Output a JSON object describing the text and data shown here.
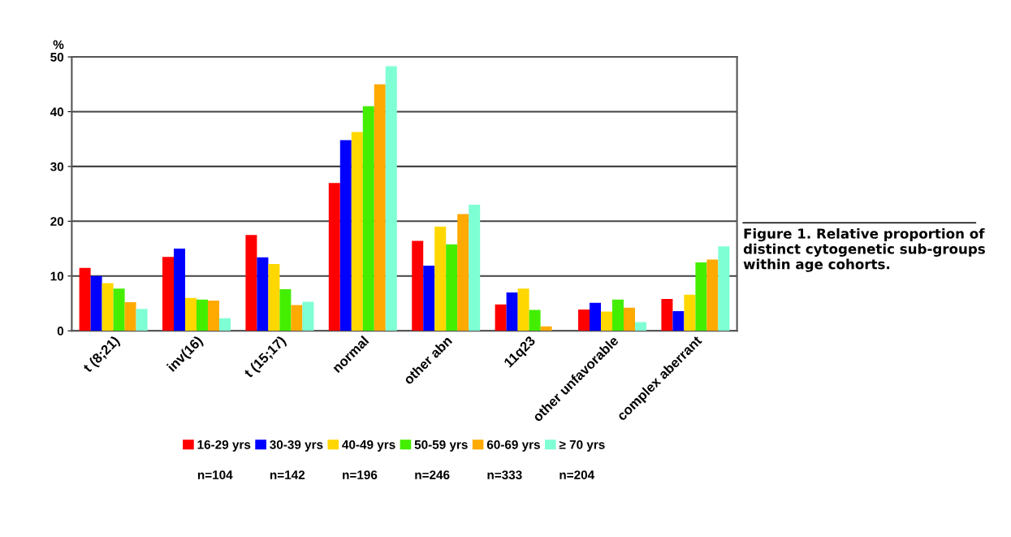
{
  "chart_data": {
    "type": "bar",
    "ylabel": "%",
    "categories": [
      "t (8;21)",
      "inv(16)",
      "t (15;17)",
      "normal",
      "other abn",
      "11q23",
      "other unfavorable",
      "complex aberrant"
    ],
    "series": [
      {
        "name": "16-29 yrs",
        "color": "#ff0000",
        "values": [
          11.5,
          13.5,
          17.5,
          27,
          16.4,
          4.8,
          3.9,
          5.8
        ]
      },
      {
        "name": "30-39 yrs",
        "color": "#0000ff",
        "values": [
          10,
          15,
          13.4,
          34.8,
          11.9,
          7,
          5.1,
          3.6
        ]
      },
      {
        "name": "40-49 yrs",
        "color": "#ffd700",
        "values": [
          8.7,
          6,
          12.2,
          36.3,
          19,
          7.7,
          3.5,
          6.6
        ]
      },
      {
        "name": "50-59 yrs",
        "color": "#44ee00",
        "values": [
          7.7,
          5.7,
          7.6,
          41,
          15.8,
          3.8,
          5.7,
          12.5
        ]
      },
      {
        "name": "60-69 yrs",
        "color": "#ffaa00",
        "values": [
          5.2,
          5.5,
          4.7,
          45,
          21.3,
          0.8,
          4.2,
          13
        ]
      },
      {
        "name": "≥ 70 yrs",
        "color": "#7fffd4",
        "values": [
          4,
          2.3,
          5.3,
          48.3,
          23,
          0,
          1.6,
          15.4
        ]
      }
    ],
    "ylim": [
      0,
      50
    ],
    "yticks": [
      0,
      10,
      20,
      30,
      40,
      50
    ],
    "grid": "y",
    "legend": "bottom",
    "annotations": [
      "Figure 1. Relative proportion of distinct cytogenetic sub-groups within age cohorts.",
      "n=104",
      "n=142",
      "n=196",
      "n=246",
      "n=333",
      "n=204"
    ]
  }
}
